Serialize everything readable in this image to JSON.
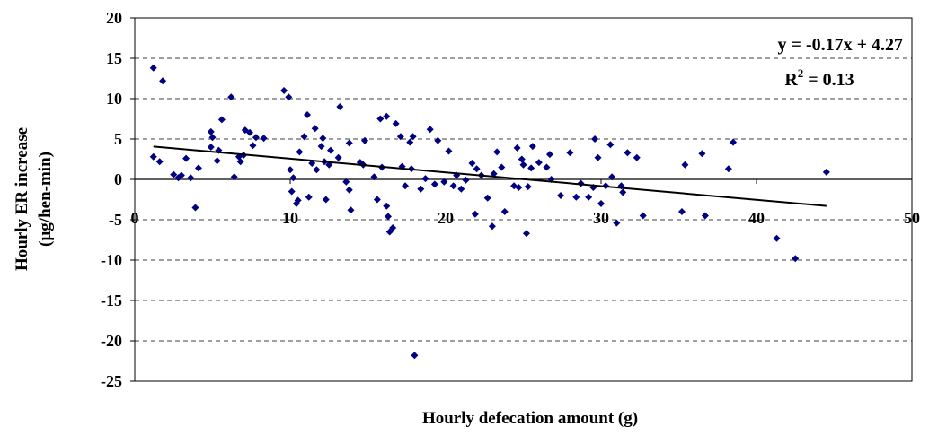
{
  "chart_data": {
    "type": "scatter",
    "xlabel": "Hourly defecation amount (g)",
    "ylabel": [
      "Hourly ER increase",
      "(µg/hen-min)"
    ],
    "xlim": [
      0,
      50
    ],
    "xticks": [
      0,
      10,
      20,
      30,
      40,
      50
    ],
    "ylim": [
      -25,
      20
    ],
    "yticks": [
      -25,
      -20,
      -15,
      -10,
      -5,
      0,
      5,
      10,
      15,
      20
    ],
    "grid": true,
    "series": [
      {
        "color": "#000080",
        "x": [
          1.2,
          1.6,
          1.8,
          1.2,
          2.5,
          2.8,
          3.0,
          3.3,
          3.6,
          3.9,
          4.1,
          4.9,
          5.0,
          4.9,
          5.3,
          5.4,
          5.6,
          6.2,
          6.4,
          6.7,
          6.8,
          7.0,
          7.1,
          7.4,
          7.6,
          7.8,
          8.3,
          9.6,
          9.9,
          10.0,
          10.1,
          10.2,
          10.4,
          10.5,
          10.6,
          10.9,
          11.1,
          11.2,
          11.4,
          11.6,
          11.7,
          12.0,
          12.1,
          12.2,
          12.3,
          12.5,
          12.6,
          13.1,
          13.2,
          13.6,
          13.8,
          13.9,
          13.8,
          14.5,
          14.7,
          14.8,
          15.4,
          15.6,
          15.8,
          15.9,
          16.2,
          16.2,
          16.3,
          16.4,
          16.6,
          16.8,
          17.1,
          17.2,
          17.4,
          17.7,
          17.8,
          17.9,
          18.0,
          18.4,
          18.7,
          19.0,
          19.3,
          19.5,
          19.9,
          20.2,
          20.5,
          20.7,
          21.0,
          21.3,
          21.7,
          21.9,
          22.0,
          22.3,
          22.7,
          23.0,
          23.1,
          23.3,
          23.6,
          23.8,
          24.4,
          24.6,
          24.7,
          24.9,
          25.0,
          25.2,
          25.3,
          25.5,
          25.6,
          26.0,
          26.5,
          26.7,
          26.8,
          27.4,
          28.0,
          28.4,
          28.7,
          29.2,
          29.5,
          29.6,
          29.8,
          30.0,
          30.3,
          30.6,
          30.7,
          31.0,
          31.3,
          31.4,
          31.7,
          32.3,
          32.7,
          35.2,
          35.4,
          36.5,
          36.7,
          38.2,
          38.5,
          41.3,
          42.5,
          44.5
        ],
        "values": [
          13.8,
          2.2,
          12.2,
          2.8,
          0.6,
          0.2,
          0.5,
          2.6,
          0.2,
          -3.5,
          1.4,
          5.9,
          5.2,
          4.0,
          2.3,
          3.6,
          7.4,
          10.2,
          0.3,
          2.8,
          2.2,
          3.0,
          6.1,
          5.8,
          4.2,
          5.2,
          5.1,
          11.0,
          10.2,
          1.2,
          -1.5,
          0.2,
          -3.0,
          -2.6,
          3.4,
          5.3,
          8.0,
          -2.2,
          2.0,
          6.3,
          1.2,
          4.1,
          5.1,
          2.2,
          -2.5,
          1.8,
          3.6,
          2.7,
          9.0,
          -0.3,
          -1.3,
          -3.8,
          4.5,
          2.1,
          1.8,
          4.8,
          0.3,
          -2.5,
          7.5,
          1.5,
          7.8,
          -3.3,
          -4.6,
          -6.5,
          -6.0,
          6.9,
          5.3,
          1.6,
          -0.8,
          4.6,
          1.3,
          5.3,
          -21.8,
          -1.2,
          0.1,
          6.2,
          -0.6,
          4.8,
          -0.3,
          3.5,
          -0.8,
          0.5,
          -1.2,
          -0.1,
          2.0,
          -4.3,
          1.3,
          0.5,
          -2.3,
          -5.8,
          0.7,
          3.4,
          1.5,
          -4.0,
          -0.8,
          3.9,
          -1.0,
          2.5,
          1.8,
          -6.7,
          -0.9,
          1.4,
          4.1,
          2.1,
          1.5,
          3.1,
          0.0,
          -2.0,
          3.3,
          -2.2,
          -0.5,
          -2.2,
          -1.0,
          5.0,
          2.7,
          -3.0,
          -0.8,
          4.3,
          0.3,
          -5.4,
          -0.8,
          -1.6,
          3.3,
          2.7,
          -4.5,
          -4.0,
          1.8,
          3.2,
          -4.5,
          1.3,
          4.6,
          -7.3,
          -9.8,
          0.9
        ]
      }
    ],
    "trendline": {
      "slope": -0.17,
      "intercept": 4.27,
      "equation": "y = -0.17x + 4.27",
      "r2_base": "R",
      "r2_sup": "2",
      "r2_value": " = 0.13"
    }
  }
}
